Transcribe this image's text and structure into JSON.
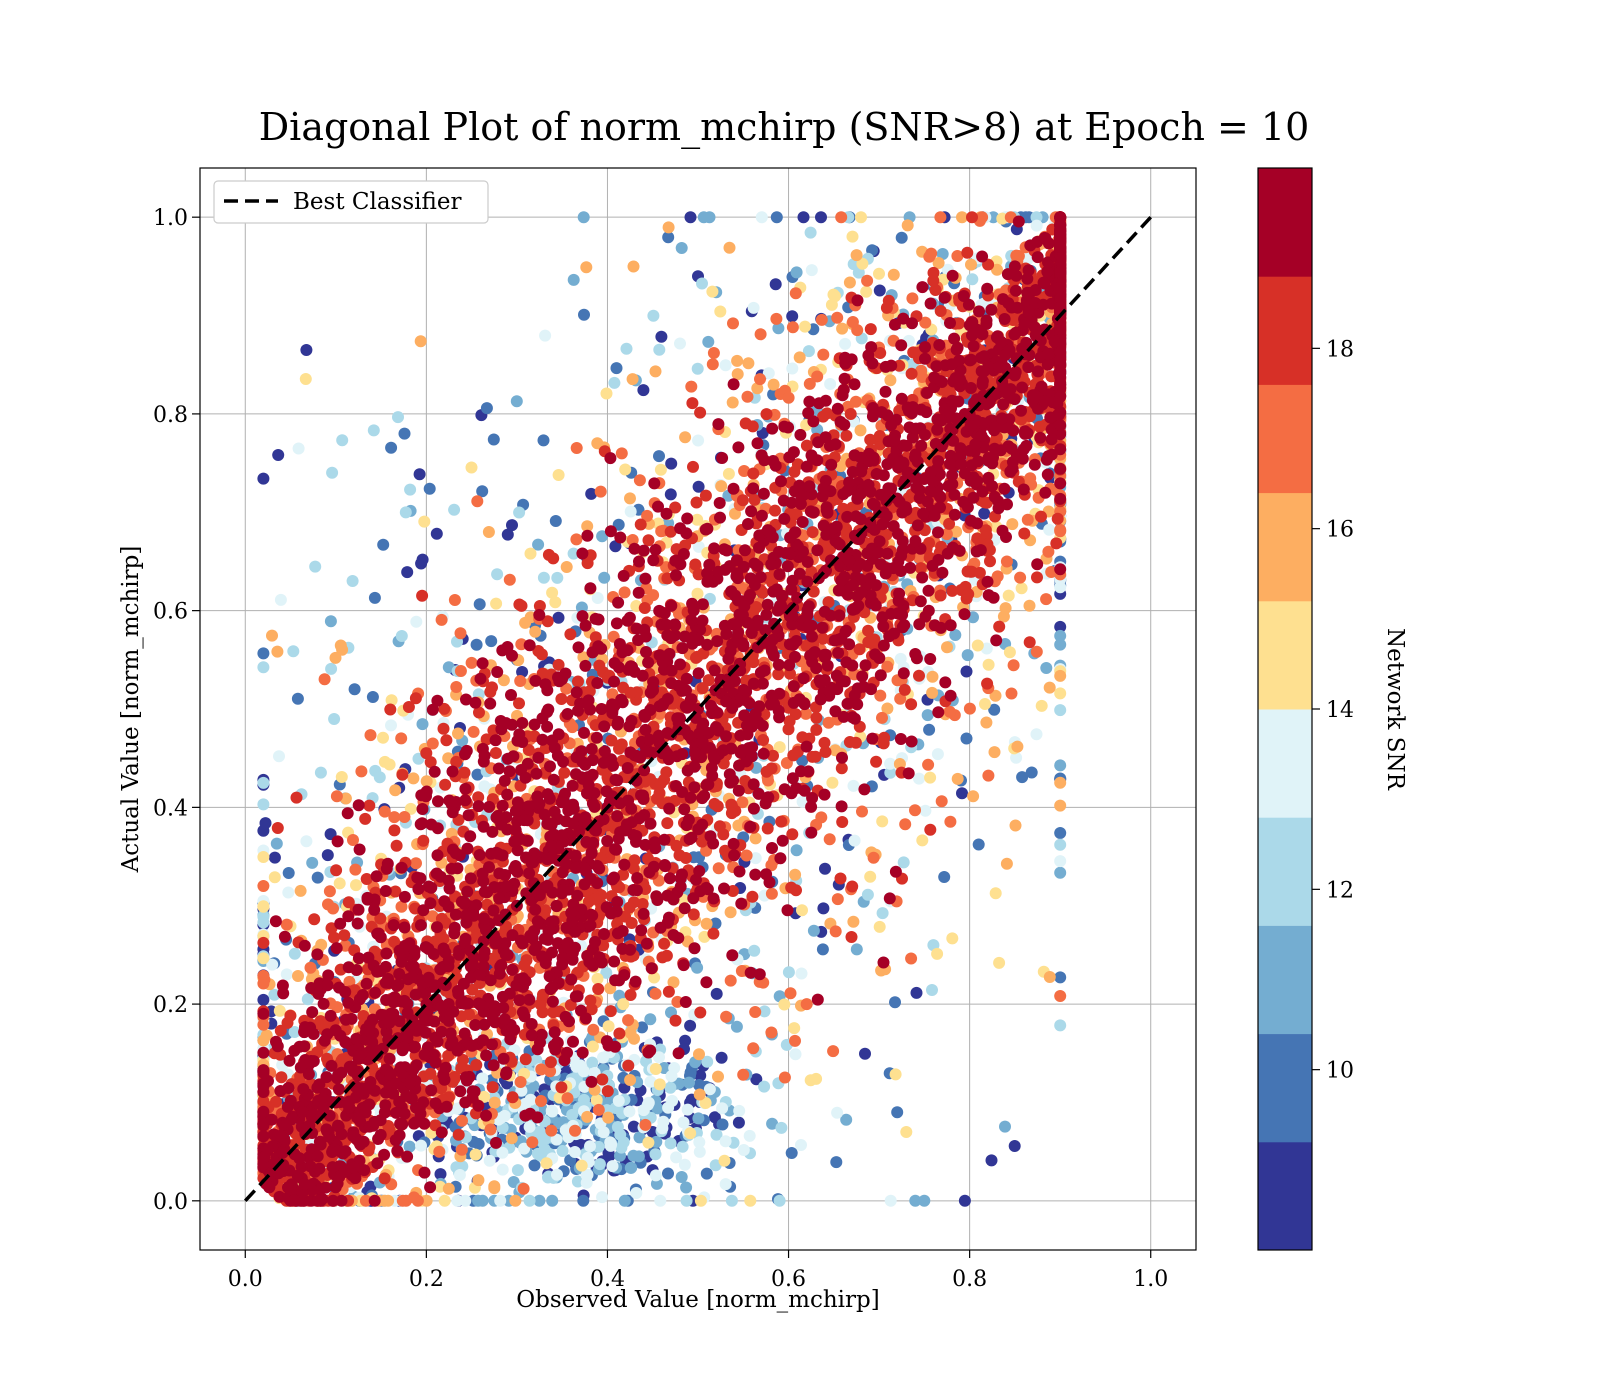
{
  "chart_data": {
    "type": "scatter",
    "title": "Diagonal Plot of norm_mchirp (SNR>8) at Epoch = 10",
    "xlabel": "Observed Value [norm_mchirp]",
    "ylabel": "Actual Value [norm_mchirp]",
    "xlim": [
      -0.05,
      1.05
    ],
    "ylim": [
      -0.05,
      1.05
    ],
    "x_ticks": [
      "0.0",
      "0.2",
      "0.4",
      "0.6",
      "0.8",
      "1.0"
    ],
    "y_ticks": [
      "0.0",
      "0.2",
      "0.4",
      "0.6",
      "0.8",
      "1.0"
    ],
    "grid": true,
    "legend": {
      "position": "top-left",
      "entries": [
        "Best Classifier"
      ]
    },
    "reference_line": {
      "name": "Best Classifier",
      "style": "dashed",
      "color": "#000000",
      "x": [
        0,
        1
      ],
      "y": [
        0,
        1
      ]
    },
    "colorbar": {
      "label": "Network SNR",
      "range": [
        8,
        20
      ],
      "ticks": [
        "10",
        "12",
        "14",
        "16",
        "18"
      ],
      "bands": [
        "#313695",
        "#4575b4",
        "#74add1",
        "#abd9e9",
        "#e0f3f8",
        "#fee090",
        "#fdae61",
        "#f46d43",
        "#d73027",
        "#a50026"
      ]
    },
    "marker_color": "#a50026",
    "point_description_samples": [
      {
        "x": 0.03,
        "y": 0.02,
        "snr": 19
      },
      {
        "x": 0.1,
        "y": 0.1,
        "snr": 19.5
      },
      {
        "x": 0.2,
        "y": 0.2,
        "snr": 19.5
      },
      {
        "x": 0.3,
        "y": 0.3,
        "snr": 19.5
      },
      {
        "x": 0.4,
        "y": 0.4,
        "snr": 19.5
      },
      {
        "x": 0.5,
        "y": 0.5,
        "snr": 19.5
      },
      {
        "x": 0.6,
        "y": 0.6,
        "snr": 19.5
      },
      {
        "x": 0.7,
        "y": 0.7,
        "snr": 19.5
      },
      {
        "x": 0.8,
        "y": 0.8,
        "snr": 19.5
      },
      {
        "x": 0.85,
        "y": 0.95,
        "snr": 19
      },
      {
        "x": 0.36,
        "y": 0.1,
        "snr": 9
      },
      {
        "x": 0.45,
        "y": 0.07,
        "snr": 9
      },
      {
        "x": 0.3,
        "y": 0.55,
        "snr": 10
      },
      {
        "x": 0.5,
        "y": 0.94,
        "snr": 8.5
      },
      {
        "x": 0.72,
        "y": 0.09,
        "snr": 10
      },
      {
        "x": 0.73,
        "y": 0.07,
        "snr": 15
      },
      {
        "x": 0.76,
        "y": 0.26,
        "snr": 12
      },
      {
        "x": 0.62,
        "y": 0.2,
        "snr": 17
      },
      {
        "x": 0.9,
        "y": 0.95,
        "snr": 17
      },
      {
        "x": 0.17,
        "y": 0.42,
        "snr": 8.5
      }
    ]
  }
}
